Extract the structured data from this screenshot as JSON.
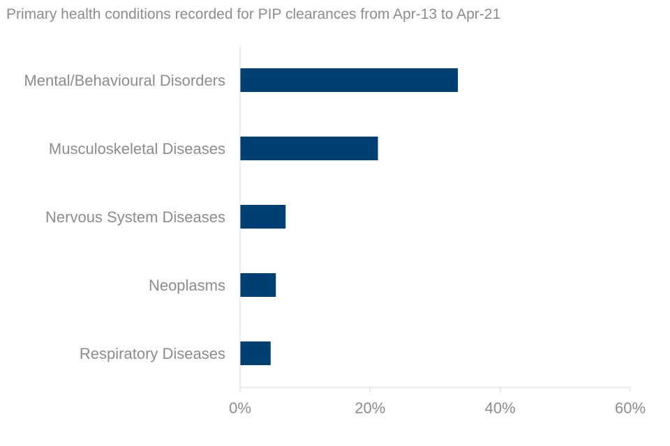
{
  "chart_data": {
    "type": "bar",
    "orientation": "horizontal",
    "title": "Primary health conditions recorded for PIP clearances from Apr-13 to Apr-21",
    "categories": [
      "Mental/Behavioural Disorders",
      "Musculoskeletal Diseases",
      "Nervous System Diseases",
      "Neoplasms",
      "Respiratory Diseases"
    ],
    "values": [
      33.5,
      21.2,
      7.0,
      5.5,
      4.7
    ],
    "xlim": [
      0,
      60
    ],
    "xticks": [
      0,
      20,
      40,
      60
    ],
    "xtick_labels": [
      "0%",
      "20%",
      "40%",
      "60%"
    ],
    "xlabel": "",
    "ylabel": "",
    "grid": false,
    "bar_color": "#003f72"
  }
}
